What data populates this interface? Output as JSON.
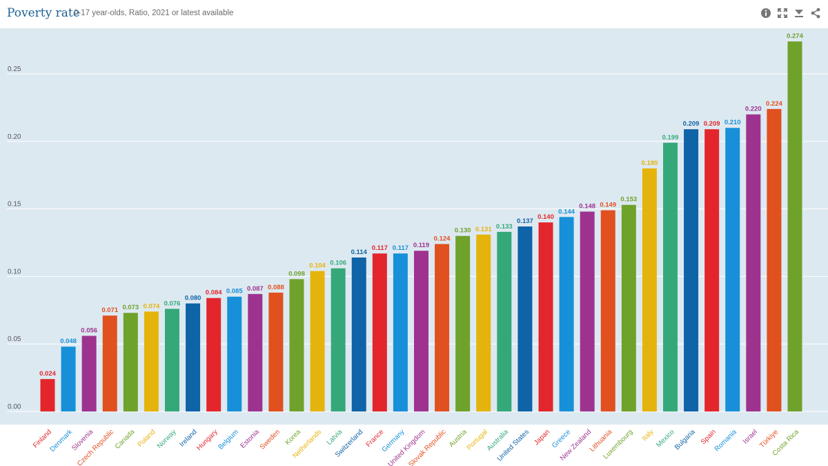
{
  "header": {
    "title": "Poverty rate",
    "subtitle": "0-17 year-olds, Ratio, 2021 or latest available",
    "tools": [
      {
        "name": "info-icon"
      },
      {
        "name": "expand-icon"
      },
      {
        "name": "download-icon"
      },
      {
        "name": "share-icon"
      }
    ]
  },
  "colors": {
    "title": "#1a5f94",
    "plot_bg": "#dde9f1",
    "grid": "#ffffff",
    "palette": [
      "#e3262b",
      "#1790d9",
      "#9d338f",
      "#e1501f",
      "#6fa22b",
      "#e5b40c",
      "#35a87a",
      "#0f63a7"
    ]
  },
  "chart_data": {
    "type": "bar",
    "title": "Poverty rate",
    "subtitle": "0-17 year-olds, Ratio, 2021 or latest available",
    "xlabel": "",
    "ylabel": "",
    "ylim": [
      0,
      0.275
    ],
    "yticks": [
      "0.00",
      "0.05",
      "0.10",
      "0.15",
      "0.20",
      "0.25"
    ],
    "grid": true,
    "legend": "none",
    "categories": [
      "Finland",
      "Denmark",
      "Slovenia",
      "Czech Republic",
      "Canada",
      "Poland",
      "Norway",
      "Ireland",
      "Hungary",
      "Belgium",
      "Estonia",
      "Sweden",
      "Korea",
      "Netherlands",
      "Latvia",
      "Switzerland",
      "France",
      "Germany",
      "United Kingdom",
      "Slovak Republic",
      "Austria",
      "Portugal",
      "Australia",
      "United States",
      "Japan",
      "Greece",
      "New Zealand",
      "Lithuania",
      "Luxembourg",
      "Italy",
      "Mexico",
      "Bulgaria",
      "Spain",
      "Romania",
      "Israel",
      "Türkiye",
      "Costa Rica"
    ],
    "values": [
      0.024,
      0.048,
      0.056,
      0.071,
      0.073,
      0.074,
      0.076,
      0.08,
      0.084,
      0.085,
      0.087,
      0.088,
      0.098,
      0.104,
      0.106,
      0.114,
      0.117,
      0.117,
      0.119,
      0.124,
      0.13,
      0.131,
      0.133,
      0.137,
      0.14,
      0.144,
      0.148,
      0.149,
      0.153,
      0.18,
      0.199,
      0.209,
      0.209,
      0.21,
      0.22,
      0.224,
      0.274
    ],
    "value_labels": [
      "0.024",
      "0.048",
      "0.056",
      "0.071",
      "0.073",
      "0.074",
      "0.076",
      "0.080",
      "0.084",
      "0.085",
      "0.087",
      "0.088",
      "0.098",
      "0.104",
      "0.106",
      "0.114",
      "0.117",
      "0.117",
      "0.119",
      "0.124",
      "0.130",
      "0.131",
      "0.133",
      "0.137",
      "0.140",
      "0.144",
      "0.148",
      "0.149",
      "0.153",
      "0.180",
      "0.199",
      "0.209",
      "0.209",
      "0.210",
      "0.220",
      "0.224",
      "0.274"
    ]
  }
}
